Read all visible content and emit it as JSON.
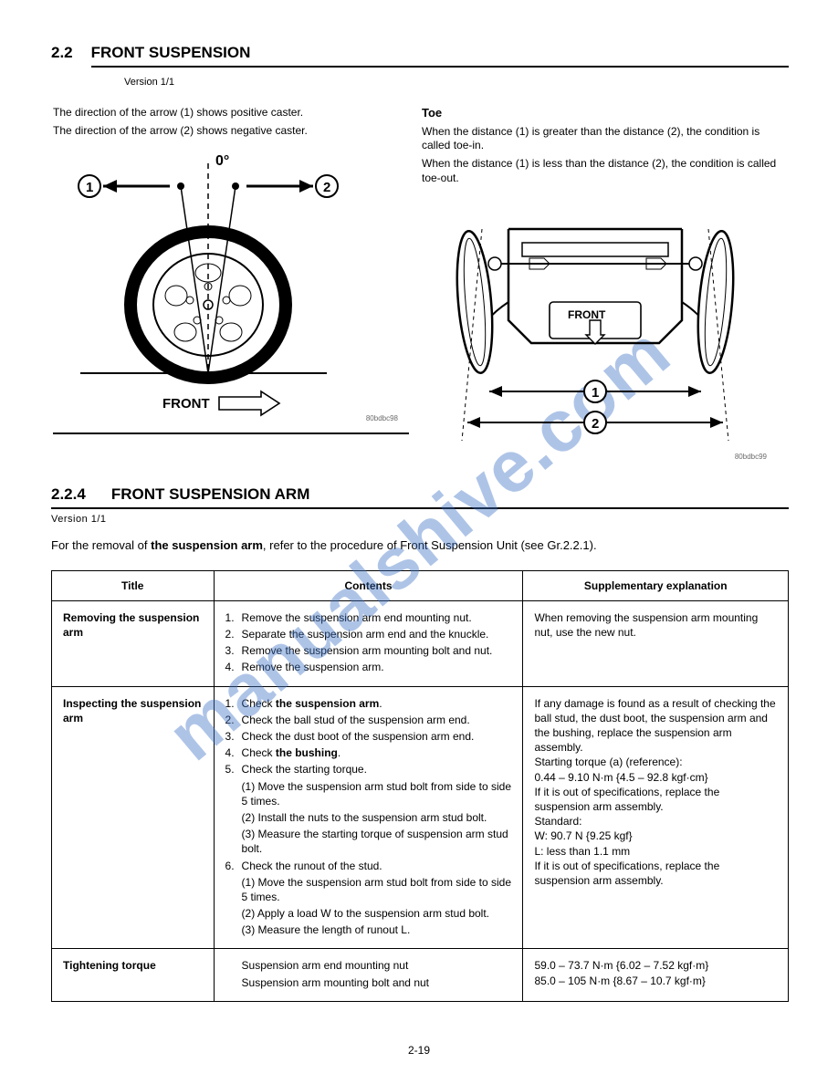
{
  "header": {
    "section_num": "2.2",
    "section_title": "FRONT SUSPENSION",
    "version": "Version 1/1"
  },
  "left_fig": {
    "line1": "The direction of the arrow (1) shows positive caster.",
    "line2": "The direction of the arrow (2) shows negative caster.",
    "zero": "0°",
    "front": "FRONT",
    "img_id": "80bdbc98"
  },
  "right_fig": {
    "heading": "Toe",
    "line1": "When the distance (1) is greater than the distance (2), the condition is called toe-in.",
    "line2": "When the distance (1) is less than the distance (2), the condition is called toe-out.",
    "front": "FRONT",
    "img_id": "80bdbc99"
  },
  "sub": {
    "num": "2.2.4",
    "title": "FRONT SUSPENSION ARM",
    "version": "Version 1/1",
    "intro_html": "For the removal of <b>the suspension arm</b>, refer to the procedure of Front Suspension Unit (see Gr.2.2.1)."
  },
  "table": {
    "headers": [
      "Title",
      "Contents",
      "Supplementary explanation"
    ],
    "rows": [
      {
        "title": "Removing the suspension arm",
        "steps": [
          {
            "n": "1.",
            "t": "Remove the suspension arm end mounting nut."
          },
          {
            "n": "2.",
            "t": "Separate the suspension arm end and the knuckle."
          },
          {
            "n": "3.",
            "t": "Remove the suspension arm mounting bolt and nut."
          },
          {
            "n": "4.",
            "t": "Remove the suspension arm."
          }
        ],
        "supp": "When removing the suspension arm mounting nut, use the new nut."
      },
      {
        "title": "Inspecting the suspension arm",
        "steps": [
          {
            "n": "1.",
            "t": "Check <b>the suspension arm</b>."
          },
          {
            "n": "2.",
            "t": "Check the ball stud of the suspension arm end."
          },
          {
            "n": "3.",
            "t": "Check the dust boot of the suspension arm end."
          },
          {
            "n": "4.",
            "t": "Check <b>the bushing</b>."
          },
          {
            "n": "5.",
            "t": "Check the starting torque."
          },
          {
            "n": "",
            "t": "(1) Move the suspension arm stud bolt from side to side 5 times."
          },
          {
            "n": "",
            "t": "(2) Install the nuts to the suspension arm stud bolt."
          },
          {
            "n": "",
            "t": "(3) Measure the starting torque of suspension arm stud bolt."
          },
          {
            "n": "6.",
            "t": "Check the runout of the stud."
          },
          {
            "n": "",
            "t": "(1) Move the suspension arm stud bolt from side to side 5 times."
          },
          {
            "n": "",
            "t": "(2) Apply a load W to the suspension arm stud bolt."
          },
          {
            "n": "",
            "t": "(3) Measure the length of runout L."
          }
        ],
        "supp": "If any damage is found as a result of checking the ball stud, the dust boot, the suspension arm and the bushing, replace the suspension arm assembly.\nStarting torque (a) (reference):\n0.44 – 9.10 N·m {4.5 – 92.8 kgf·cm}\nIf it is out of specifications, replace the suspension arm assembly.\nStandard:\nW: 90.7 N {9.25 kgf}\nL: less than 1.1 mm\nIf it is out of specifications, replace the suspension arm assembly."
      },
      {
        "title": "Tightening torque",
        "steps": [
          {
            "n": "",
            "t": "Suspension arm end mounting nut "
          },
          {
            "n": "",
            "t": "Suspension arm mounting bolt and nut"
          }
        ],
        "supp": "59.0 – 73.7 N·m {6.02 – 7.52 kgf·m}\n85.0 – 105 N·m {8.67 – 10.7 kgf·m}"
      }
    ]
  },
  "footer": "2-19",
  "watermark": "manualshive.com"
}
